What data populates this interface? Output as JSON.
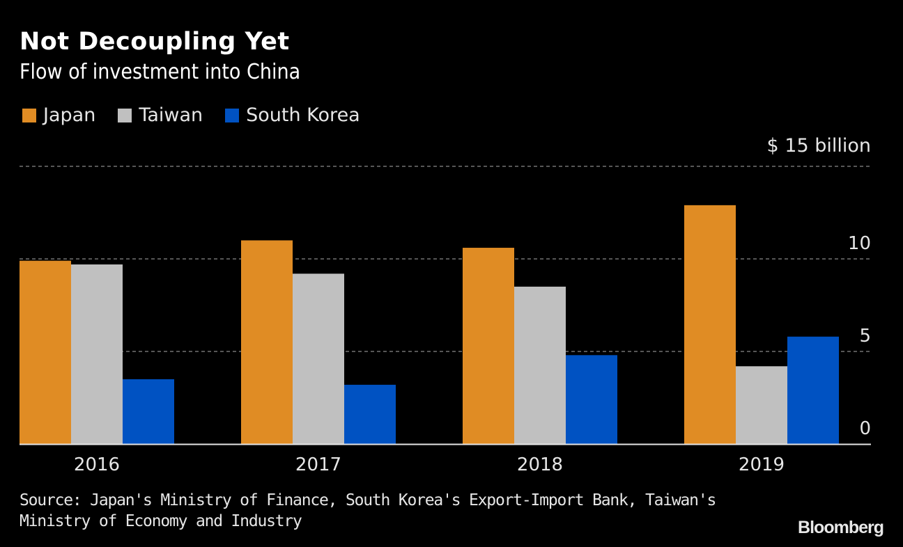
{
  "header": {
    "title": "Not Decoupling Yet",
    "subtitle": "Flow of investment into China"
  },
  "legend": [
    {
      "label": "Japan",
      "color": "#e08c24"
    },
    {
      "label": "Taiwan",
      "color": "#c0c0c0"
    },
    {
      "label": "South Korea",
      "color": "#0052c2"
    }
  ],
  "footer": {
    "source": "Source: Japan's Ministry of Finance, South Korea's Export-Import Bank, Taiwan's Ministry of Economy and Industry",
    "brand": "Bloomberg"
  },
  "chart_data": {
    "type": "bar",
    "title": "Not Decoupling Yet",
    "subtitle": "Flow of investment into China",
    "xlabel": "",
    "ylabel": "$ billion",
    "unit_label": "$ 15 billion",
    "categories": [
      "2016",
      "2017",
      "2018",
      "2019"
    ],
    "series": [
      {
        "name": "Japan",
        "color": "#e08c24",
        "values": [
          9.9,
          11.0,
          10.6,
          12.9
        ]
      },
      {
        "name": "Taiwan",
        "color": "#c0c0c0",
        "values": [
          9.7,
          9.2,
          8.5,
          4.2
        ]
      },
      {
        "name": "South Korea",
        "color": "#0052c2",
        "values": [
          3.5,
          3.2,
          4.8,
          5.8
        ]
      }
    ],
    "ylim": [
      0,
      15
    ],
    "yticks": [
      0,
      5,
      10,
      15
    ],
    "ytick_labels": [
      "0",
      "5",
      "10",
      "$ 15 billion"
    ],
    "grid": true,
    "legend_position": "top-left",
    "axis_side": "right"
  }
}
